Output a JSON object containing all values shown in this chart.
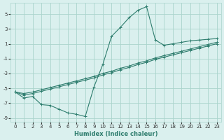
{
  "xlabel": "Humidex (Indice chaleur)",
  "ylabel": "",
  "background_color": "#daf0ee",
  "grid_color": "#aad4cc",
  "line_color": "#2e7d6e",
  "xlim": [
    -0.5,
    23.5
  ],
  "ylim": [
    -9.5,
    6.5
  ],
  "xticks": [
    0,
    1,
    2,
    3,
    4,
    5,
    6,
    7,
    8,
    9,
    10,
    11,
    12,
    13,
    14,
    15,
    16,
    17,
    18,
    19,
    20,
    21,
    22,
    23
  ],
  "yticks": [
    -9,
    -7,
    -5,
    -3,
    -1,
    1,
    3,
    5
  ],
  "curve1_x": [
    0,
    1,
    2,
    3,
    4,
    5,
    6,
    7,
    8,
    9,
    10,
    11,
    12,
    13,
    14,
    15,
    16,
    17,
    18,
    19,
    20,
    21,
    22,
    23
  ],
  "curve1_y": [
    -5.5,
    -6.3,
    -6.1,
    -7.2,
    -7.3,
    -7.8,
    -8.3,
    -8.5,
    -8.8,
    -4.8,
    -1.8,
    2.0,
    3.2,
    4.5,
    5.5,
    6.0,
    1.5,
    0.8,
    1.0,
    1.2,
    1.4,
    1.5,
    1.6,
    1.7
  ],
  "curve2_x": [
    0,
    1,
    2,
    3,
    4,
    5,
    6,
    7,
    8,
    9,
    10,
    11,
    12,
    13,
    14,
    15,
    16,
    17,
    18,
    19,
    20,
    21,
    22,
    23
  ],
  "curve2_y": [
    -5.5,
    -5.7,
    -5.5,
    -5.2,
    -4.9,
    -4.6,
    -4.3,
    -4.0,
    -3.7,
    -3.4,
    -3.0,
    -2.7,
    -2.3,
    -2.0,
    -1.6,
    -1.3,
    -0.9,
    -0.6,
    -0.3,
    0.0,
    0.3,
    0.6,
    0.9,
    1.2
  ],
  "curve3_x": [
    0,
    1,
    2,
    3,
    4,
    5,
    6,
    7,
    8,
    9,
    10,
    11,
    12,
    13,
    14,
    15,
    16,
    17,
    18,
    19,
    20,
    21,
    22,
    23
  ],
  "curve3_y": [
    -5.5,
    -5.9,
    -5.7,
    -5.4,
    -5.1,
    -4.8,
    -4.5,
    -4.2,
    -3.9,
    -3.6,
    -3.2,
    -2.9,
    -2.5,
    -2.2,
    -1.8,
    -1.5,
    -1.1,
    -0.8,
    -0.5,
    -0.2,
    0.1,
    0.4,
    0.7,
    1.0
  ]
}
